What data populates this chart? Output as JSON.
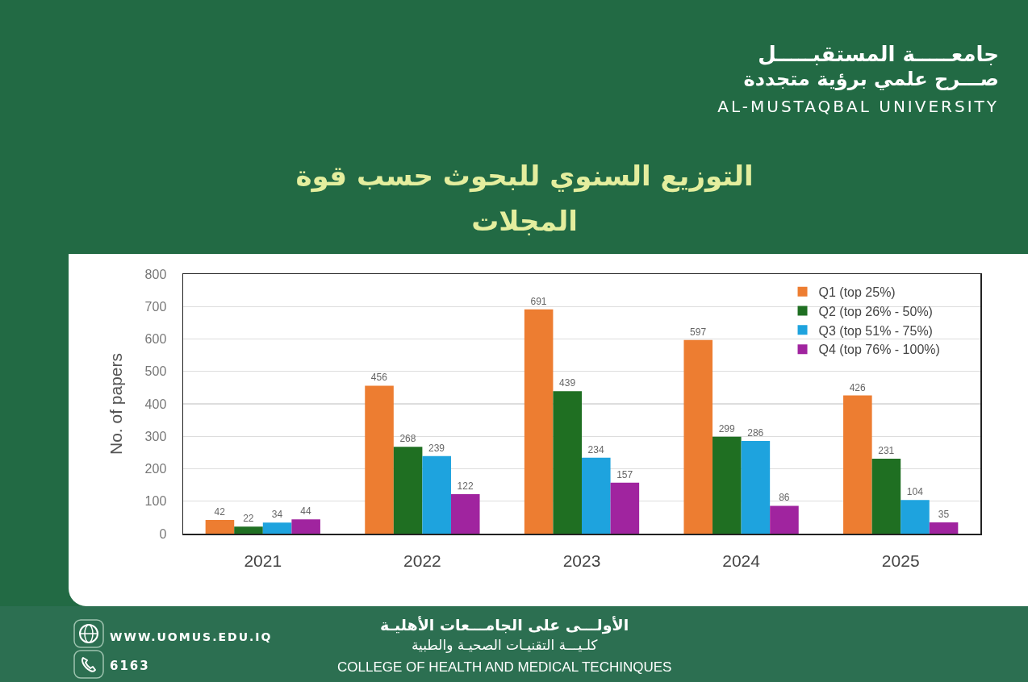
{
  "chart_data": {
    "type": "bar",
    "title": "التوزيع السنوي للبحوث حسب قوة المجلات",
    "ylabel": "No. of papers",
    "categories": [
      "2021",
      "2022",
      "2023",
      "2024",
      "2025"
    ],
    "series": [
      {
        "name": "Q1 (top 25%)",
        "color": "#ed7d31",
        "values": [
          42,
          456,
          691,
          597,
          426
        ]
      },
      {
        "name": "Q2 (top 26% - 50%)",
        "color": "#1f6f22",
        "values": [
          22,
          268,
          439,
          299,
          231
        ]
      },
      {
        "name": "Q3 (top 51% - 75%)",
        "color": "#1ea3de",
        "values": [
          34,
          239,
          234,
          286,
          104
        ]
      },
      {
        "name": "Q4 (top 76% - 100%)",
        "color": "#a0249f",
        "values": [
          44,
          122,
          157,
          86,
          35
        ]
      }
    ],
    "ylim": [
      0,
      800
    ],
    "yticks": [
      0,
      100,
      200,
      300,
      400,
      500,
      600,
      700,
      800
    ],
    "grid": "y",
    "legend": "top right",
    "data_labels": true,
    "annotations": [
      "جامعـــــة المستقبـــــل",
      "صـــرح علمي برؤية متجددة",
      "AL-MUSTAQBAL UNIVERSITY",
      "الأولـــى على الجامـــعات الأهليـة",
      "كلـيـــة التقنيـات الصحيـة والطبية",
      "COLLEGE OF HEALTH AND MEDICAL TECHINQUES",
      "WWW.UOMUS.EDU.IQ",
      "6163"
    ]
  }
}
